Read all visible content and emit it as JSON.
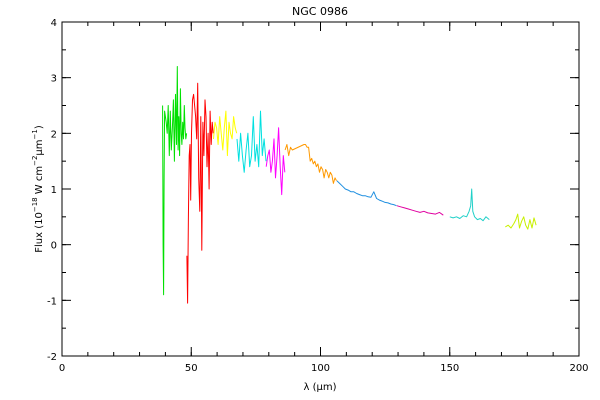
{
  "chart_data": {
    "type": "line",
    "title": "NGC 0986",
    "xlabel": "λ (μm)",
    "ylabel_parts": {
      "prefix": "Flux (10",
      "exp1": "−18",
      "mid1": " W cm",
      "exp2": "−2",
      "mid2": "μm",
      "exp3": "−1",
      "suffix": ")"
    },
    "xlim": [
      0,
      200
    ],
    "ylim": [
      -2,
      4
    ],
    "xticks": [
      0,
      50,
      100,
      150,
      200
    ],
    "xminor_step": 10,
    "yticks": [
      -2,
      -1,
      0,
      1,
      2,
      3,
      4
    ],
    "yminor_step": 0.5,
    "series": [
      {
        "color": "#00e000",
        "x": [
          38.9,
          39.1,
          39.3,
          39.5,
          39.7,
          40.0,
          40.3,
          40.7,
          41.1,
          41.5,
          41.9,
          42.3,
          42.7,
          43.1,
          43.5,
          43.9,
          44.3,
          44.6,
          44.9,
          45.2,
          45.5,
          45.8,
          46.1,
          46.4,
          46.7,
          47.0,
          47.3,
          47.6,
          47.9,
          48.2
        ],
        "y": [
          2.5,
          0.0,
          -0.9,
          1.2,
          2.4,
          2.3,
          2.2,
          2.0,
          2.5,
          1.6,
          2.4,
          1.7,
          2.1,
          2.6,
          1.5,
          2.7,
          1.8,
          3.2,
          1.7,
          2.3,
          1.6,
          2.8,
          2.0,
          1.8,
          2.2,
          1.9,
          2.5,
          2.1,
          1.9,
          2.0
        ]
      },
      {
        "color": "#ff0000",
        "x": [
          48.3,
          48.6,
          48.9,
          49.2,
          49.5,
          49.8,
          50.1,
          50.5,
          50.9,
          51.3,
          51.7,
          52.1,
          52.5,
          52.9,
          53.3,
          53.7,
          54.1,
          54.5,
          54.9,
          55.3,
          55.7,
          56.1,
          56.5,
          56.9,
          57.3,
          57.7,
          58.1,
          58.5
        ],
        "y": [
          -0.2,
          -1.05,
          0.5,
          1.6,
          1.8,
          0.8,
          2.0,
          2.6,
          2.7,
          2.5,
          2.3,
          1.9,
          2.9,
          1.2,
          0.6,
          2.3,
          -0.1,
          2.2,
          1.6,
          2.6,
          2.3,
          1.4,
          2.0,
          1.0,
          2.4,
          1.8,
          2.2,
          2.0
        ]
      },
      {
        "color": "#ffff00",
        "x": [
          58.6,
          59.2,
          59.8,
          60.4,
          61.0,
          61.6,
          62.2,
          62.8,
          63.4,
          64.0,
          64.6,
          65.2,
          65.8,
          66.4,
          67.0,
          67.6
        ],
        "y": [
          1.9,
          2.2,
          2.1,
          1.8,
          2.3,
          2.0,
          1.7,
          2.1,
          2.4,
          1.6,
          2.2,
          2.0,
          1.9,
          2.3,
          2.1,
          2.0
        ]
      },
      {
        "color": "#00e0e0",
        "x": [
          67.7,
          68.4,
          69.1,
          69.8,
          70.5,
          71.2,
          71.9,
          72.6,
          73.3,
          74.0,
          74.7,
          75.4,
          76.1,
          76.8,
          77.5,
          78.2,
          78.9
        ],
        "y": [
          1.9,
          1.5,
          2.0,
          1.6,
          1.3,
          1.7,
          2.0,
          1.4,
          1.6,
          2.3,
          1.5,
          1.8,
          1.4,
          2.4,
          1.6,
          1.9,
          1.5
        ]
      },
      {
        "color": "#ff00ff",
        "x": [
          79.0,
          79.6,
          80.2,
          80.8,
          81.4,
          82.0,
          82.6,
          83.2,
          83.8,
          84.4,
          85.0,
          85.6,
          86.2
        ],
        "y": [
          1.4,
          1.6,
          1.7,
          1.3,
          1.5,
          1.9,
          1.2,
          1.6,
          2.1,
          1.4,
          0.9,
          1.6,
          1.3
        ]
      },
      {
        "color": "#ff9900",
        "x": [
          86.3,
          87.0,
          87.7,
          88.4,
          89.1,
          93.6,
          94.2,
          94.8,
          95.4,
          96.0,
          96.6,
          97.2,
          97.8,
          98.4,
          99.0,
          99.6,
          100.2,
          100.8,
          101.4,
          102.0,
          102.6,
          103.2,
          103.8,
          104.4,
          105.0,
          105.6,
          106.2
        ],
        "y": [
          1.7,
          1.8,
          1.6,
          1.75,
          1.7,
          1.8,
          1.8,
          1.75,
          1.75,
          1.5,
          1.55,
          1.45,
          1.5,
          1.4,
          1.45,
          1.3,
          1.4,
          1.35,
          1.2,
          1.35,
          1.3,
          1.2,
          1.3,
          1.25,
          1.1,
          1.2,
          1.15
        ]
      },
      {
        "color": "#1f8fe0",
        "x": [
          106.3,
          107.4,
          108.5,
          109.6,
          110.7,
          111.8,
          112.9,
          114.0,
          115.1,
          116.2,
          117.3,
          118.4,
          119.5,
          120.6,
          121.7,
          122.8,
          123.9,
          125.0,
          126.1,
          127.2,
          128.3,
          129.4
        ],
        "y": [
          1.15,
          1.1,
          1.05,
          1.0,
          0.98,
          0.95,
          0.95,
          0.92,
          0.9,
          0.88,
          0.88,
          0.86,
          0.85,
          0.95,
          0.83,
          0.8,
          0.78,
          0.76,
          0.75,
          0.73,
          0.72,
          0.7
        ]
      },
      {
        "color": "#e000a0",
        "x": [
          129.5,
          131.0,
          132.5,
          134.0,
          135.5,
          137.0,
          138.5,
          140.0,
          141.5,
          143.0,
          144.5,
          146.0,
          147.5
        ],
        "y": [
          0.7,
          0.68,
          0.66,
          0.64,
          0.62,
          0.6,
          0.58,
          0.6,
          0.57,
          0.56,
          0.55,
          0.58,
          0.53
        ]
      },
      {
        "color": "#20d0c8",
        "x": [
          150.0,
          151.3,
          152.6,
          153.9,
          155.2,
          156.5,
          157.5,
          158.1,
          158.5,
          158.9,
          159.6,
          160.7,
          161.8,
          162.9,
          164.0,
          165.3
        ],
        "y": [
          0.5,
          0.48,
          0.5,
          0.47,
          0.52,
          0.5,
          0.6,
          0.7,
          1.0,
          0.6,
          0.5,
          0.45,
          0.47,
          0.43,
          0.5,
          0.45
        ]
      },
      {
        "color": "#c8f000",
        "x": [
          171.5,
          172.6,
          173.7,
          174.8,
          175.6,
          176.3,
          177.0,
          177.8,
          178.6,
          179.4,
          180.2,
          181.0,
          181.8,
          182.6,
          183.4
        ],
        "y": [
          0.32,
          0.35,
          0.3,
          0.38,
          0.45,
          0.55,
          0.3,
          0.42,
          0.5,
          0.35,
          0.28,
          0.45,
          0.3,
          0.48,
          0.35
        ]
      }
    ]
  }
}
